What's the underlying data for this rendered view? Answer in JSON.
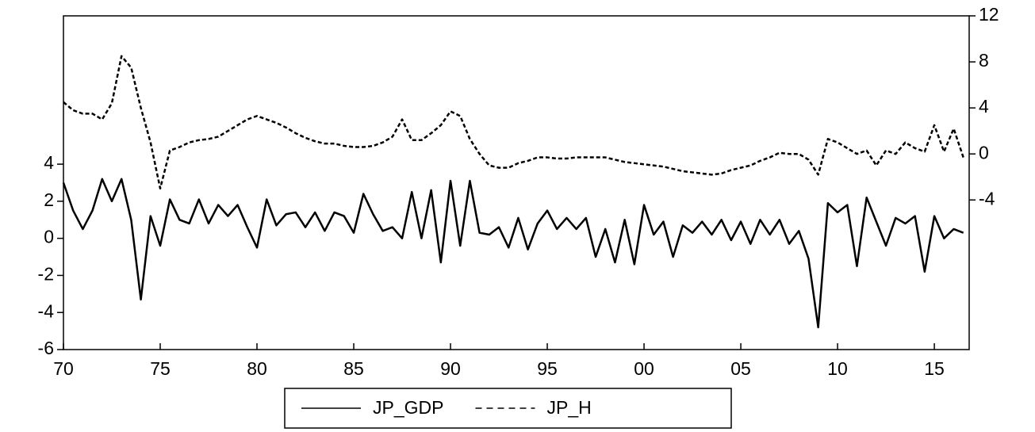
{
  "chart_data": {
    "type": "line",
    "x": [
      1970,
      1970.5,
      1971,
      1971.5,
      1972,
      1972.5,
      1973,
      1973.5,
      1974,
      1974.5,
      1975,
      1975.5,
      1976,
      1976.5,
      1977,
      1977.5,
      1978,
      1978.5,
      1979,
      1979.5,
      1980,
      1980.5,
      1981,
      1981.5,
      1982,
      1982.5,
      1983,
      1983.5,
      1984,
      1984.5,
      1985,
      1985.5,
      1986,
      1986.5,
      1987,
      1987.5,
      1988,
      1988.5,
      1989,
      1989.5,
      1990,
      1990.5,
      1991,
      1991.5,
      1992,
      1992.5,
      1993,
      1993.5,
      1994,
      1994.5,
      1995,
      1995.5,
      1996,
      1996.5,
      1997,
      1997.5,
      1998,
      1998.5,
      1999,
      1999.5,
      2000,
      2000.5,
      2001,
      2001.5,
      2002,
      2002.5,
      2003,
      2003.5,
      2004,
      2004.5,
      2005,
      2005.5,
      2006,
      2006.5,
      2007,
      2007.5,
      2008,
      2008.5,
      2009,
      2009.5,
      2010,
      2010.5,
      2011,
      2011.5,
      2012,
      2012.5,
      2013,
      2013.5,
      2014,
      2014.5,
      2015,
      2015.5,
      2016,
      2016.5
    ],
    "series": [
      {
        "name": "JP_GDP",
        "color": "#000000",
        "dash": "solid",
        "values": [
          3,
          1.5,
          0.5,
          1.5,
          3.2,
          2,
          3.2,
          1,
          -3.3,
          1.2,
          -0.4,
          2.1,
          1,
          0.8,
          2.1,
          0.8,
          1.8,
          1.2,
          1.8,
          0.6,
          -0.5,
          2.1,
          0.7,
          1.3,
          1.4,
          0.6,
          1.4,
          0.4,
          1.4,
          1.2,
          0.3,
          2.4,
          1.3,
          0.4,
          0.6,
          0,
          2.5,
          0,
          2.6,
          -1.3,
          3.1,
          -0.4,
          3.1,
          0.3,
          0.2,
          0.6,
          -0.5,
          1.1,
          -0.6,
          0.8,
          1.5,
          0.5,
          1.1,
          0.5,
          1.1,
          -1,
          0.5,
          -1.3,
          1,
          -1.4,
          1.8,
          0.2,
          0.9,
          -1,
          0.7,
          0.3,
          0.9,
          0.2,
          1,
          -0.1,
          0.9,
          -0.3,
          1,
          0.2,
          1,
          -0.3,
          0.4,
          -1.1,
          -4.8,
          1.9,
          1.4,
          1.8,
          -1.5,
          2.2,
          0.9,
          -0.4,
          1.1,
          0.8,
          1.2,
          -1.8,
          1.2,
          0,
          0.5,
          0.3
        ]
      },
      {
        "name": "JP_H",
        "color": "#000000",
        "dash": "dashed",
        "axis": "y2",
        "values": [
          4.5,
          3.8,
          3.5,
          3.5,
          3,
          4.4,
          8.5,
          7.5,
          4,
          1,
          -3,
          0.3,
          0.6,
          1,
          1.2,
          1.3,
          1.5,
          2,
          2.5,
          3,
          3.3,
          3,
          2.7,
          2.3,
          1.8,
          1.4,
          1.1,
          0.9,
          0.9,
          0.7,
          0.6,
          0.6,
          0.7,
          1,
          1.5,
          3,
          1.2,
          1.2,
          1.8,
          2.5,
          3.7,
          3.3,
          1.3,
          0,
          -1,
          -1.2,
          -1.2,
          -0.8,
          -0.6,
          -0.3,
          -0.3,
          -0.4,
          -0.4,
          -0.3,
          -0.3,
          -0.3,
          -0.3,
          -0.5,
          -0.7,
          -0.8,
          -0.9,
          -1,
          -1.1,
          -1.3,
          -1.5,
          -1.6,
          -1.7,
          -1.8,
          -1.7,
          -1.4,
          -1.2,
          -1,
          -0.6,
          -0.3,
          0.1,
          0,
          0,
          -0.5,
          -1.8,
          1.3,
          1,
          0.5,
          0,
          0.3,
          -1,
          0.3,
          0,
          1,
          0.5,
          0.2,
          2.5,
          0.2,
          2.2,
          -0.3
        ]
      }
    ],
    "xlim": [
      1970,
      2016.8
    ],
    "xticks": [
      {
        "value": 1970,
        "label": "70"
      },
      {
        "value": 1975,
        "label": "75"
      },
      {
        "value": 1980,
        "label": "80"
      },
      {
        "value": 1985,
        "label": "85"
      },
      {
        "value": 1990,
        "label": "90"
      },
      {
        "value": 1995,
        "label": "95"
      },
      {
        "value": 2000,
        "label": "00"
      },
      {
        "value": 2005,
        "label": "05"
      },
      {
        "value": 2010,
        "label": "10"
      },
      {
        "value": 2015,
        "label": "15"
      }
    ],
    "ylim": [
      -6,
      12
    ],
    "yticks": [
      -6,
      -4,
      -2,
      0,
      2,
      4
    ],
    "y2lim": [
      -17,
      12
    ],
    "y2ticks": [
      -4,
      0,
      4,
      8,
      12
    ],
    "legend": "bottom"
  }
}
